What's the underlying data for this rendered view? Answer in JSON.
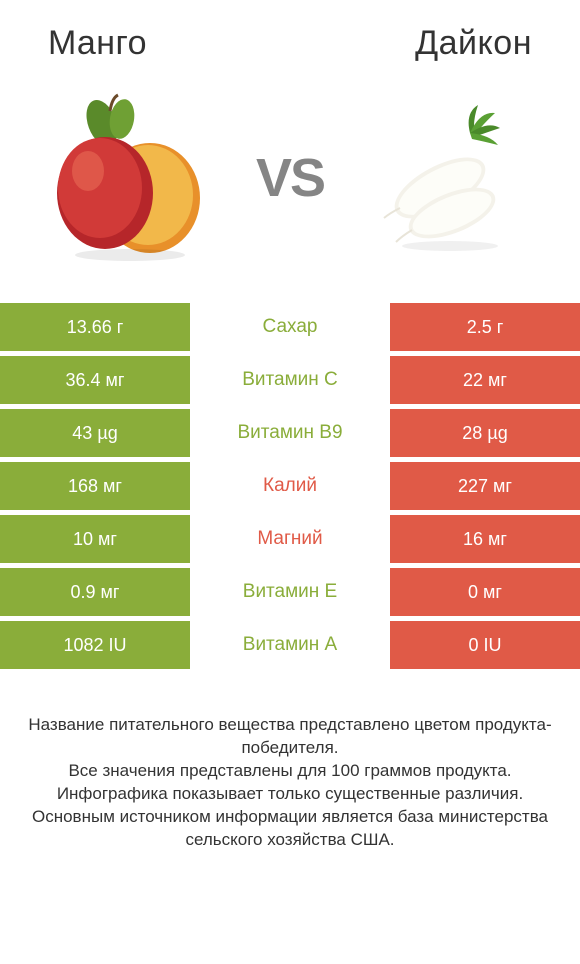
{
  "colors": {
    "left": "#8aad3a",
    "right": "#e05a47",
    "left_text_winner": "#8aad3a",
    "right_text_winner": "#e05a47",
    "title": "#333333",
    "vs": "#858585",
    "foot": "#333333"
  },
  "header": {
    "left_title": "Mанго",
    "right_title": "Дайкон"
  },
  "vs_label": "VS",
  "rows": [
    {
      "left": "13.66 г",
      "label": "Сахар",
      "right": "2.5 г",
      "winner": "left"
    },
    {
      "left": "36.4 мг",
      "label": "Витамин C",
      "right": "22 мг",
      "winner": "left"
    },
    {
      "left": "43 µg",
      "label": "Витамин B9",
      "right": "28 µg",
      "winner": "left"
    },
    {
      "left": "168 мг",
      "label": "Калий",
      "right": "227 мг",
      "winner": "right"
    },
    {
      "left": "10 мг",
      "label": "Магний",
      "right": "16 мг",
      "winner": "right"
    },
    {
      "left": "0.9 мг",
      "label": "Витамин E",
      "right": "0 мг",
      "winner": "left"
    },
    {
      "left": "1082 IU",
      "label": "Витамин A",
      "right": "0 IU",
      "winner": "left"
    }
  ],
  "footnote": "Название питательного вещества представлено цветом продукта-победителя.\nВсе значения представлены для 100 граммов продукта.\nИнфографика показывает только существенные различия.\nОсновным источником информации является база министерства сельского хозяйства США."
}
